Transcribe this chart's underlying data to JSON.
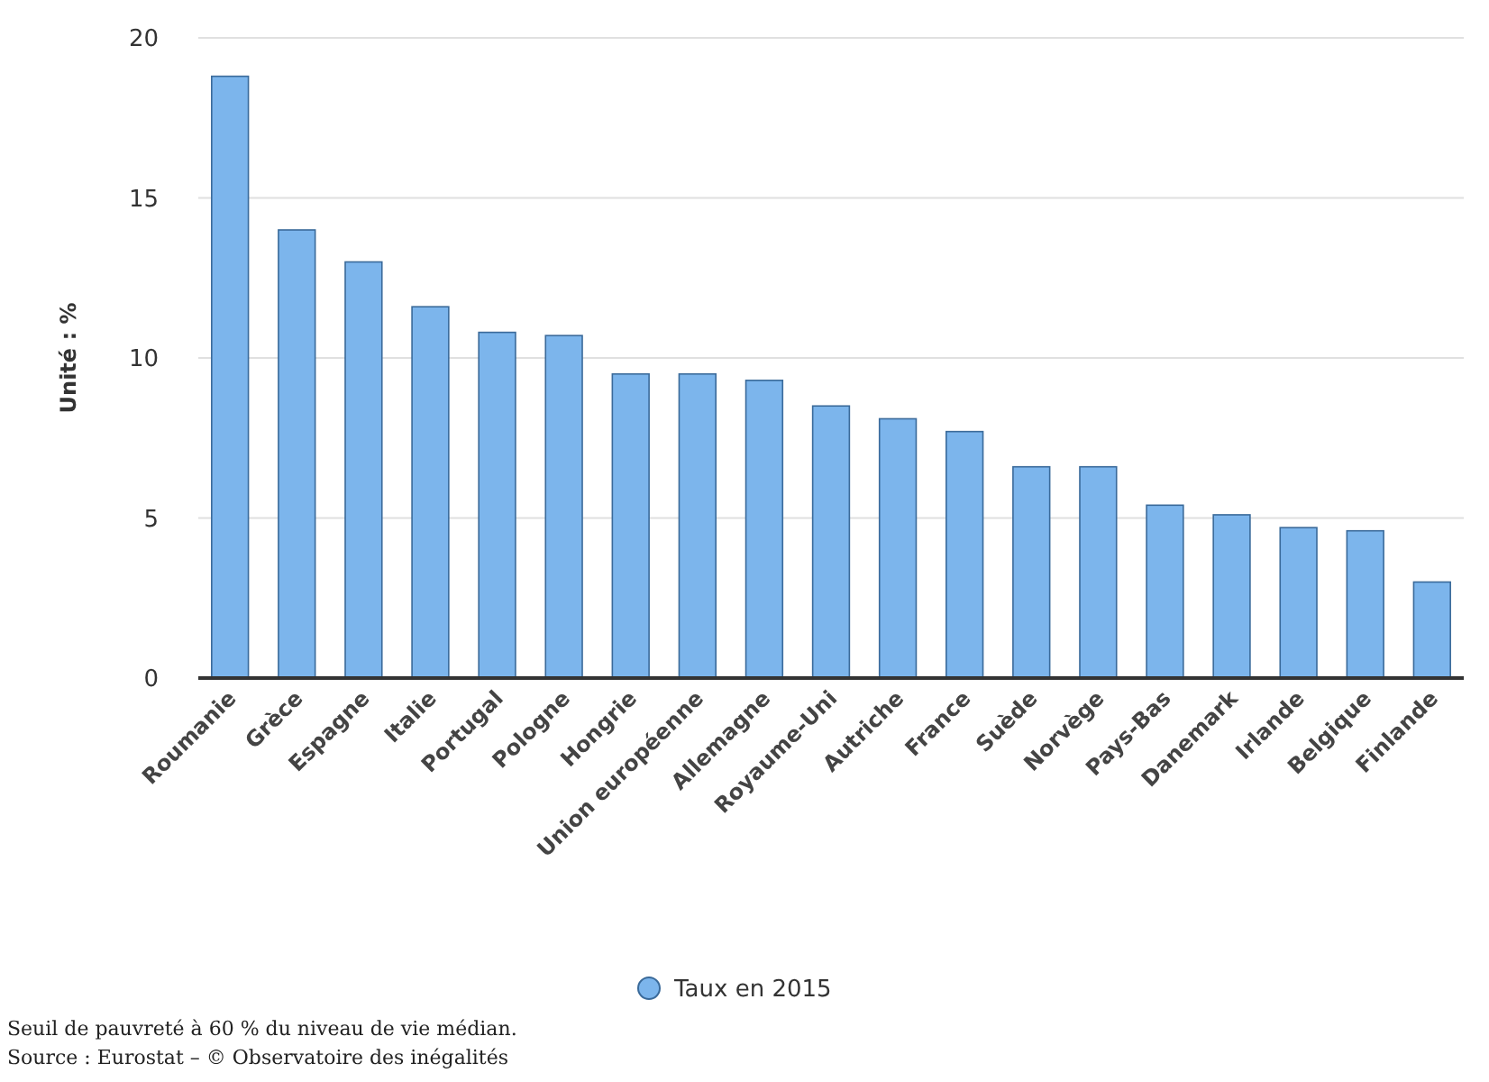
{
  "chart_data": {
    "type": "bar",
    "ylabel": "Unité : %",
    "categories": [
      "Roumanie",
      "Grèce",
      "Espagne",
      "Italie",
      "Portugal",
      "Pologne",
      "Hongrie",
      "Union européenne",
      "Allemagne",
      "Royaume-Uni",
      "Autriche",
      "France",
      "Suède",
      "Norvège",
      "Pays-Bas",
      "Danemark",
      "Irlande",
      "Belgique",
      "Finlande"
    ],
    "series": [
      {
        "name": "Taux en 2015",
        "color": "#7cb5ec",
        "values": [
          18.8,
          14.0,
          13.0,
          11.6,
          10.8,
          10.7,
          9.5,
          9.5,
          9.3,
          8.5,
          8.1,
          7.7,
          6.6,
          6.6,
          5.4,
          5.1,
          4.7,
          4.6,
          3.0
        ]
      }
    ],
    "ylim": [
      0,
      20
    ],
    "yticks": [
      0,
      5,
      10,
      15,
      20
    ],
    "grid": "y",
    "legend": "bottom",
    "marker": "circle",
    "annotations": [
      "Seuil de pauvreté à 60 % du niveau de vie médian.",
      "Source : Eurostat – © Observatoire des inégalités"
    ]
  }
}
